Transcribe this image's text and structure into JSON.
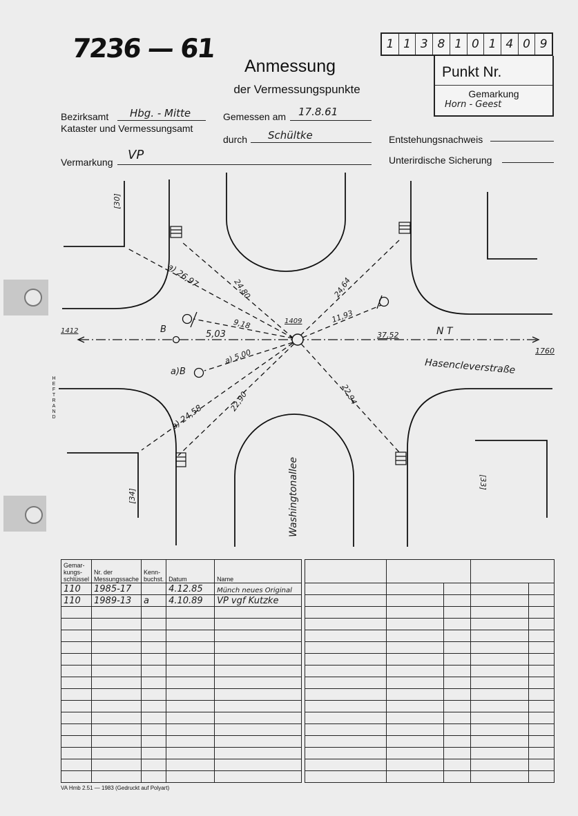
{
  "header": {
    "document_number": "7236 — 61",
    "title": "Anmessung",
    "subtitle": "der Vermessungspunkte",
    "point_digits": [
      "1",
      "1",
      "3",
      "8",
      "1",
      "0",
      "1",
      "4",
      "0",
      "9"
    ],
    "punkt_label": "Punkt Nr.",
    "gemarkung_label": "Gemarkung",
    "gemarkung_value": "Horn - Geest"
  },
  "form": {
    "bezirksamt_label": "Bezirksamt",
    "bezirksamt_value": "Hbg. - Mitte",
    "amt_label": "Kataster und Vermessungsamt",
    "gemessen_label": "Gemessen am",
    "gemessen_value": "17.8.61",
    "durch_label": "durch",
    "durch_value": "Schültke",
    "entstehung_label": "Entstehungsnachweis",
    "entstehung_value": "",
    "vermarkung_label": "Vermarkung",
    "vermarkung_value": "VP",
    "unterirdisch_label": "Unterirdische Sicherung",
    "unterirdisch_value": ""
  },
  "sketch": {
    "center_point": "1409",
    "left_point": "1412",
    "right_point": "1760",
    "street_horizontal": "Hasencleverstraße",
    "street_vertical": "Washingtonallee",
    "north_label": "N T",
    "marker_b": "B",
    "marker_ab": "a)B",
    "house_nr_top_left": "[30]",
    "house_nr_bottom_left": "[34]",
    "house_nr_bottom_right": "[33]",
    "distances": {
      "d1": "a) 26,97",
      "d2": "24,80",
      "d3": "24,64",
      "d4": "11,93",
      "d5": "9,18",
      "d6": "5,03",
      "d7": "37,52",
      "d8": "a) 5,00",
      "d9": "a) 24,58",
      "d10": "22,90",
      "d11": "22,94"
    },
    "margin_label": "HEFTRAND"
  },
  "table": {
    "headers": [
      "Gemar-kungs-schlüssel",
      "Nr. der Messungssache",
      "Kenn-buchst.",
      "Datum",
      "Name"
    ],
    "rows": [
      [
        "110",
        "1985-17",
        "",
        "4.12.85",
        "Münch neues Original"
      ],
      [
        "110",
        "1989-13",
        "a",
        "4.10.89",
        "VP vgf Kutzke"
      ]
    ]
  },
  "footer": "VA Hmb 2.51 — 1983 (Gedruckt auf Polyart)"
}
